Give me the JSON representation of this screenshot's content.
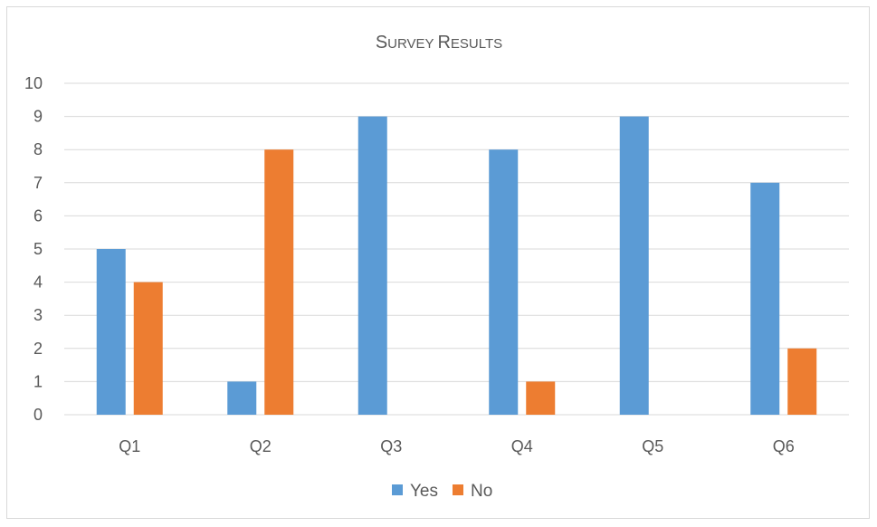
{
  "chart_data": {
    "type": "bar",
    "title": "Survey Results",
    "title_display": {
      "first_big": "S",
      "rest_first": "URVEY",
      "second_big": "R",
      "rest_second": "ESULTS"
    },
    "categories": [
      "Q1",
      "Q2",
      "Q3",
      "Q4",
      "Q5",
      "Q6"
    ],
    "series": [
      {
        "name": "Yes",
        "color": "#5B9BD5",
        "values": [
          5,
          1,
          9,
          8,
          9,
          7
        ]
      },
      {
        "name": "No",
        "color": "#ED7D31",
        "values": [
          4,
          8,
          0,
          1,
          0,
          2
        ]
      }
    ],
    "ylim": [
      0,
      10
    ],
    "y_ticks": [
      "0",
      "1",
      "2",
      "3",
      "4",
      "5",
      "6",
      "7",
      "8",
      "9",
      "10"
    ],
    "xlabel": "",
    "ylabel": "",
    "grid": true,
    "legend_position": "bottom",
    "colors": {
      "gridline": "#d9d9d9",
      "text": "#595959",
      "border": "#d9d9d9"
    }
  }
}
